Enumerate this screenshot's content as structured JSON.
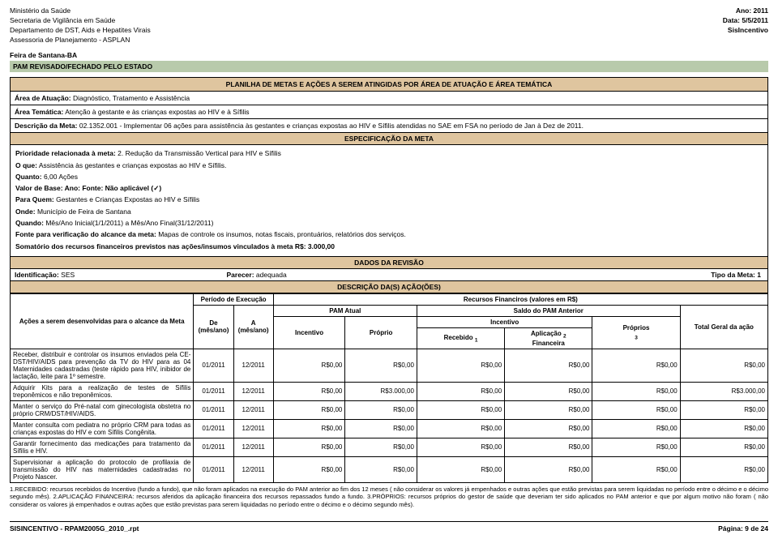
{
  "header": {
    "left": [
      "Ministério da Saúde",
      "Secretaria de Vigilância em Saúde",
      "Departamento de DST, Aids e Hepatites Virais",
      "Assessoria de Planejamento - ASPLAN"
    ],
    "right_labels": [
      "Ano:",
      "Data:",
      ""
    ],
    "right_values": [
      "2011",
      "5/5/2011",
      "SisIncentivo"
    ]
  },
  "location": "Feira de Santana-BA",
  "status": "PAM REVISADO/FECHADO PELO ESTADO",
  "banner": "PLANILHA DE METAS E AÇÕES A SEREM ATINGIDAS POR ÁREA DE ATUAÇÃO E ÁREA TEMÁTICA",
  "area": {
    "atuacao_label": "Área de Atuação:",
    "atuacao_value": "Diagnóstico, Tratamento e Assistência",
    "tematica_label": "Área Temática:",
    "tematica_value": "Atenção à gestante e às crianças expostas ao HIV e à Sífilis",
    "meta_label": "Descrição da Meta:",
    "meta_value": "02.1352.001 - Implementar 06 ações para assistência às gestantes e crianças expostas ao HIV e Sífilis atendidas no SAE em FSA no período de Jan à Dez de 2011."
  },
  "spec_header": "ESPECIFICAÇÃO DA META",
  "spec": {
    "prioridade_l": "Prioridade relacionada à meta:",
    "prioridade_v": "2. Redução da Transmissão Vertical para HIV e Sífilis",
    "oque_l": "O que:",
    "oque_v": "Assistência às gestantes e crianças expostas ao HIV e Sífilis.",
    "quanto_l": "Quanto:",
    "quanto_v": "6,00 Ações",
    "base_l": "Valor de Base:   Ano:      Fonte:     Não aplicável (✓)",
    "paraquem_l": "Para Quem:",
    "paraquem_v": "Gestantes e Crianças Expostas ao HIV e Sífilis",
    "onde_l": "Onde:",
    "onde_v": "Município de Feira de Santana",
    "quando_l": "Quando:",
    "quando_v": "Mês/Ano Inicial(1/1/2011)  a Mês/Ano Final(31/12/2011)",
    "fonte_l": "Fonte para verificação do alcance da meta:",
    "fonte_v": "Mapas de controle os insumos, notas fiscais, prontuários, relatórios dos serviços.",
    "soma_l": "Somatório dos recursos financeiros previstos nas ações/insumos vinculados à meta R$:",
    "soma_v": "3.000,00"
  },
  "rev_header": "DADOS DA REVISÃO",
  "ident": {
    "id_l": "Identificação:",
    "id_v": "SES",
    "parecer_l": "Parecer:",
    "parecer_v": "adequada",
    "tipo_l": "Tipo da Meta:",
    "tipo_v": "1"
  },
  "desc_header": "DESCRIÇÃO DA(S) AÇÃO(ÕES)",
  "table": {
    "col_acoes": "Ações a serem desenvolvidas para o alcance da Meta",
    "col_periodo": "Período de Execução",
    "col_de": "De (mês/ano)",
    "col_a": "A (mês/ano)",
    "col_recursos": "Recursos Financiros (valores em R$)",
    "col_pam": "PAM Atual",
    "col_saldo": "Saldo do PAM Anterior",
    "col_incentivo": "Incentivo",
    "col_proprio": "Próprio",
    "col_incentivo2": "Incentivo",
    "col_recebido": "Recebido",
    "col_aplicacao": "Aplicação",
    "col_proprios": "Próprios",
    "col_total": "Total Geral da ação",
    "sub1": "1",
    "sub2": "2",
    "sub3": "3",
    "rows": [
      {
        "acao": "Receber, distribuir e controlar os insumos enviados pela CE-DST/HIV/AIDS para prevenção da TV do HIV para as 04 Maternidades cadastradas (teste rápido para HIV, inibidor de lactação, leite para 1º semestre.",
        "de": "01/2011",
        "a": "12/2011",
        "v": [
          "R$0,00",
          "R$0,00",
          "R$0,00",
          "R$0,00",
          "R$0,00",
          "R$0,00"
        ]
      },
      {
        "acao": "Adquirir Kits para a realização de testes de Sífilis treponêmicos e não treponêmicos.",
        "de": "01/2011",
        "a": "12/2011",
        "v": [
          "R$0,00",
          "R$3.000,00",
          "R$0,00",
          "R$0,00",
          "R$0,00",
          "R$3.000,00"
        ]
      },
      {
        "acao": "Manter o serviço do Pré-natal com ginecologista obstetra no próprio CRM/DST/HIV/AIDS.",
        "de": "01/2011",
        "a": "12/2011",
        "v": [
          "R$0,00",
          "R$0,00",
          "R$0,00",
          "R$0,00",
          "R$0,00",
          "R$0,00"
        ]
      },
      {
        "acao": "Manter consulta com pediatra no próprio CRM para todas as crianças expostas do HIV e com Sífilis Congênita.",
        "de": "01/2011",
        "a": "12/2011",
        "v": [
          "R$0,00",
          "R$0,00",
          "R$0,00",
          "R$0,00",
          "R$0,00",
          "R$0,00"
        ]
      },
      {
        "acao": "Garantir fornecimento das medicações para tratamento da Sífilis e HIV.",
        "de": "01/2011",
        "a": "12/2011",
        "v": [
          "R$0,00",
          "R$0,00",
          "R$0,00",
          "R$0,00",
          "R$0,00",
          "R$0,00"
        ]
      },
      {
        "acao": "Supervisionar a aplicação do protocolo de profilaxia de transmissão do HIV nas maternidades cadastradas no Projeto Nascer.",
        "de": "01/2011",
        "a": "12/2011",
        "v": [
          "R$0,00",
          "R$0,00",
          "R$0,00",
          "R$0,00",
          "R$0,00",
          "R$0,00"
        ]
      }
    ]
  },
  "footnotes": "1.RECEBIDO: recursos recebidos do Incentivo (fundo a fundo), que não foram aplicados na execução do PAM anterior ao fim dos 12 meses ( não considerar os valores já empenhados e outras ações que estão previstas para serem liquidadas no período entre o décimo e o décimo segundo mês). 2.APLICAÇÃO FINANCEIRA: recursos aferidos da aplicação financeira dos recursos repassados fundo a fundo. 3.PRÓPRIOS: recursos próprios do gestor de saúde que deveriam ter sido aplicados no PAM anterior e que por algum motivo não foram ( não considerar os valores já empenhados e outras ações que estão previstas para serem liquidadas no período entre o décimo e o décimo segundo mês).",
  "footer": {
    "left": "SISINCENTIVO - RPAM2005G_2010_.rpt",
    "right": "Página: 9 de 24"
  }
}
